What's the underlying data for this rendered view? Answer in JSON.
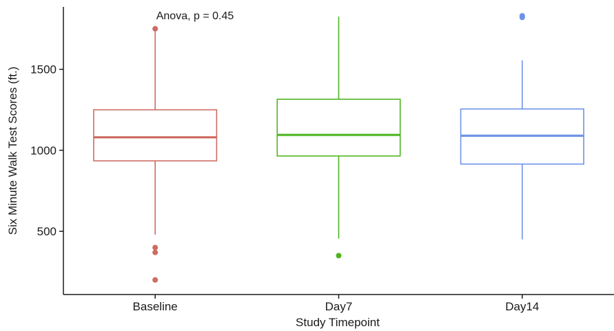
{
  "chart_data": {
    "type": "boxplot",
    "xlabel": "Study Timepoint",
    "ylabel": "Six Minute Walk Test Scores (ft.)",
    "ylim": [
      110,
      1885
    ],
    "yticks": [
      500,
      1000,
      1500
    ],
    "ytick_labels": [
      "500",
      "1000",
      "1500"
    ],
    "annotation": "Anova, p = 0.45",
    "grid": false,
    "legend": "none",
    "categories": [
      "Baseline",
      "Day7",
      "Day14"
    ],
    "series": [
      {
        "category": "Baseline",
        "color": "#cf6b63",
        "whisker_low": 480,
        "q1": 935,
        "median": 1080,
        "q3": 1250,
        "whisker_high": 1740,
        "outliers": [
          1750,
          400,
          370,
          200
        ]
      },
      {
        "category": "Day7",
        "color": "#4db51f",
        "whisker_low": 455,
        "q1": 965,
        "median": 1095,
        "q3": 1315,
        "whisker_high": 1825,
        "outliers": [
          350
        ]
      },
      {
        "category": "Day14",
        "color": "#6e93e6",
        "whisker_low": 450,
        "q1": 915,
        "median": 1090,
        "q3": 1255,
        "whisker_high": 1555,
        "outliers": [
          1820,
          1830
        ]
      }
    ]
  }
}
